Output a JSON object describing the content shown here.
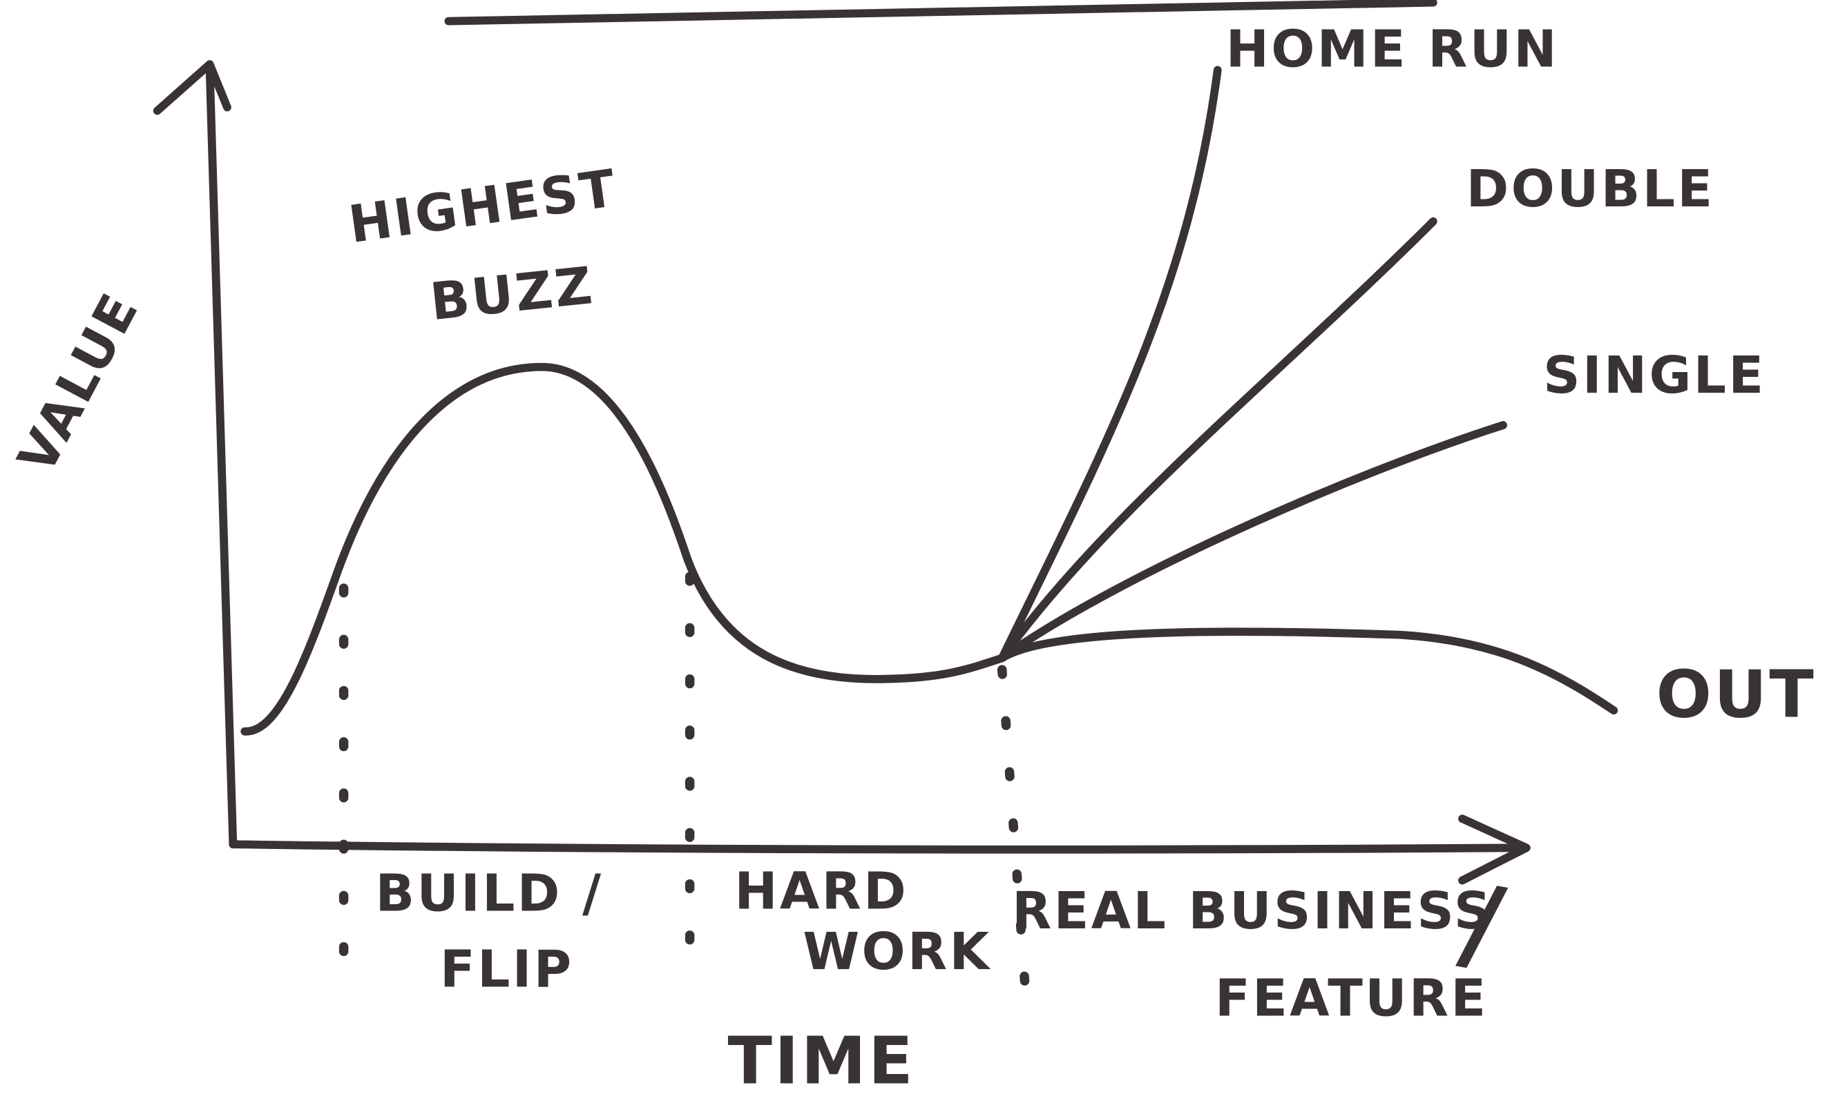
{
  "axes": {
    "y_label": "VALUE",
    "x_label": "TIME"
  },
  "annotations": {
    "peak": [
      "HIGHEST",
      "BUZZ"
    ]
  },
  "outcomes": [
    "HOME RUN",
    "DOUBLE",
    "SINGLE",
    "OUT"
  ],
  "phases": [
    {
      "lines": [
        "BUILD /",
        "FLIP"
      ]
    },
    {
      "lines": [
        "HARD",
        "WORK"
      ]
    },
    {
      "lines": [
        "REAL BUSINESS",
        "/",
        "FEATURE"
      ]
    }
  ]
}
